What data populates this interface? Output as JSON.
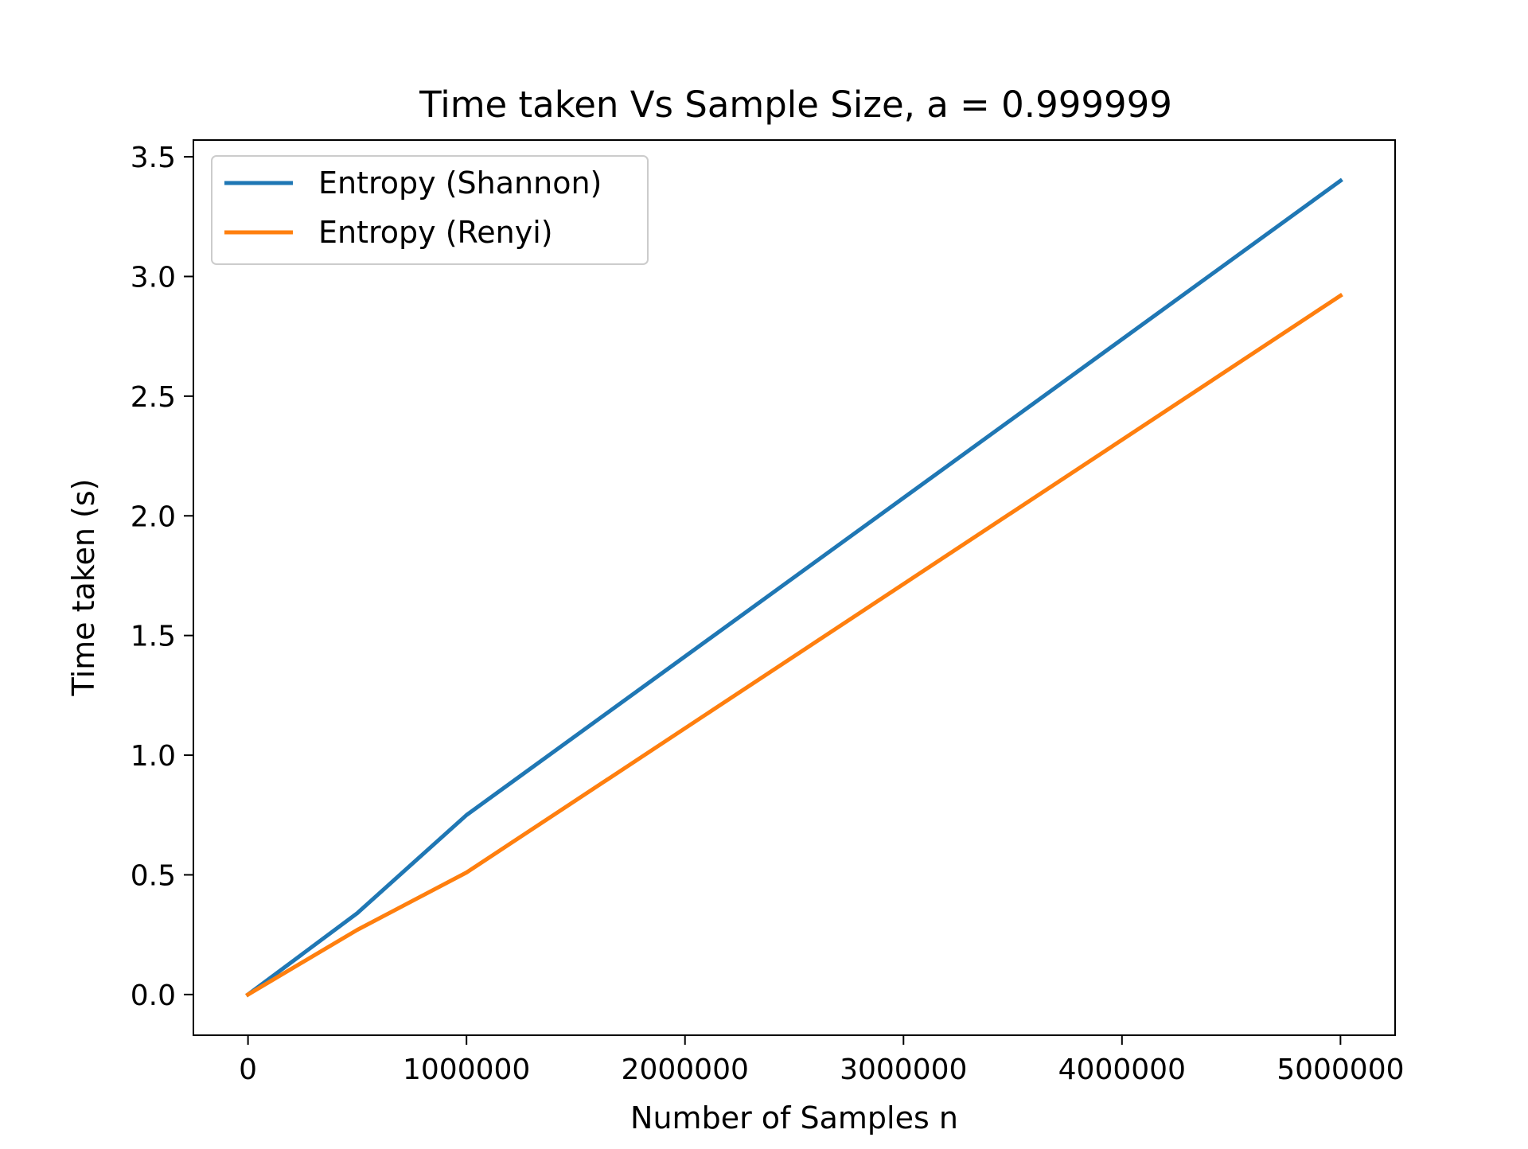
{
  "chart_data": {
    "type": "line",
    "title": "Time taken Vs Sample Size, a = 0.999999",
    "xlabel": "Number of Samples n",
    "ylabel": "Time taken (s)",
    "xlim": [
      -250000,
      5250000
    ],
    "ylim": [
      -0.17,
      3.57
    ],
    "x_ticks": [
      0,
      1000000,
      2000000,
      3000000,
      4000000,
      5000000
    ],
    "x_tick_labels": [
      "0",
      "1000000",
      "2000000",
      "3000000",
      "4000000",
      "5000000"
    ],
    "y_ticks": [
      0.0,
      0.5,
      1.0,
      1.5,
      2.0,
      2.5,
      3.0,
      3.5
    ],
    "y_tick_labels": [
      "0.0",
      "0.5",
      "1.0",
      "1.5",
      "2.0",
      "2.5",
      "3.0",
      "3.5"
    ],
    "grid": false,
    "legend_position": "top-left",
    "x": [
      0,
      500000,
      1000000,
      5000000
    ],
    "series": [
      {
        "name": "Entropy (Shannon)",
        "color": "#1f77b4",
        "values": [
          0.0,
          0.34,
          0.75,
          3.4
        ]
      },
      {
        "name": "Entropy (Renyi)",
        "color": "#ff7f0e",
        "values": [
          0.0,
          0.27,
          0.51,
          2.92
        ]
      }
    ]
  }
}
